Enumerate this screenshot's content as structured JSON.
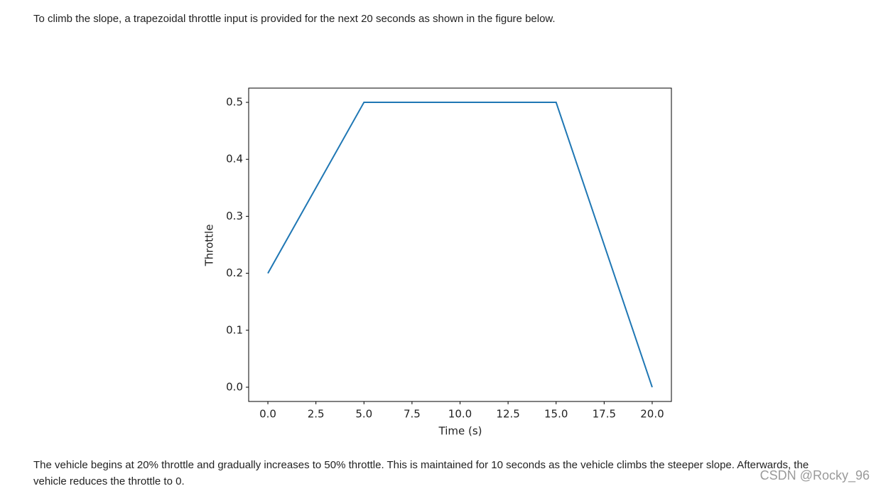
{
  "paragraphs": [
    "To climb the slope, a trapezoidal throttle input is provided for the next 20 seconds as shown in the figure below.",
    "The vehicle begins at 20% throttle and gradually increases to 50% throttle. This is maintained for 10 seconds as the vehicle climbs the steeper slope. Afterwards, the vehicle reduces the throttle to 0."
  ],
  "chart_data": {
    "type": "line",
    "x_label": "Time (s)",
    "y_label": "Throttle",
    "x": [
      0,
      5,
      15,
      20
    ],
    "series": [
      {
        "color": "#1f77b4",
        "values": [
          0.2,
          0.5,
          0.5,
          0
        ]
      }
    ],
    "xlim": [
      -1,
      21
    ],
    "ylim": [
      -0.025,
      0.525
    ],
    "xticks": [
      {
        "value": 0,
        "label": "0.0"
      },
      2.5,
      {
        "value": 5,
        "label": "5.0"
      },
      7.5,
      {
        "value": 10,
        "label": "10.0"
      },
      12.5,
      {
        "value": 15,
        "label": "15.0"
      },
      17.5,
      {
        "value": 20,
        "label": "20.0"
      }
    ],
    "yticks": [
      {
        "value": 0,
        "label": "0.0"
      },
      0.1,
      0.2,
      0.3,
      0.4,
      0.5
    ],
    "grid": false
  },
  "watermark": "CSDN @Rocky_96"
}
